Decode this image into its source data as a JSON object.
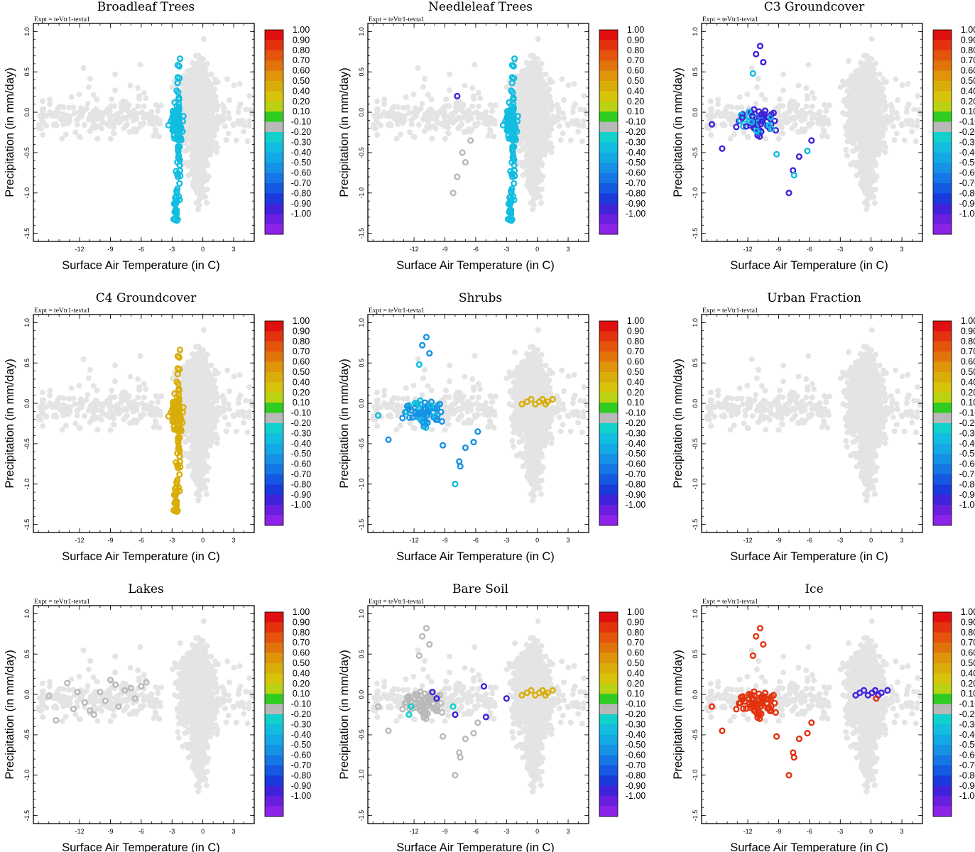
{
  "figure": {
    "experiment_label": "Expt = teVtr1-tevta1",
    "xlabel": "Surface Air Temperature (in C)",
    "ylabel": "Precipitation (in mm/day)"
  },
  "chart_data": [
    {
      "type": "scatter",
      "title": "Broadleaf Trees",
      "expt": "Expt = teVtr1-tevta1",
      "xlabel": "Surface Air Temperature (in C)",
      "ylabel": "Precipitation (in mm/day)",
      "xlim": [
        -16.5,
        5
      ],
      "ylim": [
        -1.6,
        1.1
      ],
      "xticks": [
        -12,
        -9,
        -6,
        -3,
        0,
        3
      ],
      "yticks": [
        -1.5,
        -1.0,
        -0.5,
        0.0,
        0.5,
        1.0
      ],
      "highlight": {
        "region": "narrow-band",
        "correlation": -0.3
      }
    },
    {
      "type": "scatter",
      "title": "Needleleaf Trees",
      "expt": "Expt = teVtr1-tevta1",
      "xlabel": "Surface Air Temperature (in C)",
      "ylabel": "Precipitation (in mm/day)",
      "xlim": [
        -16.5,
        5
      ],
      "ylim": [
        -1.6,
        1.1
      ],
      "xticks": [
        -12,
        -9,
        -6,
        -3,
        0,
        3
      ],
      "yticks": [
        -1.5,
        -1.0,
        -0.5,
        0.0,
        0.5,
        1.0
      ],
      "highlight": {
        "region": "narrow-band",
        "correlation": -0.3,
        "extras": [
          [
            -7.8,
            0.2,
            -0.9
          ],
          [
            -6.5,
            -0.35,
            -0.1
          ],
          [
            -7.3,
            -0.5,
            -0.1
          ],
          [
            -7.0,
            -0.62,
            -0.1
          ],
          [
            -7.8,
            -0.8,
            -0.1
          ],
          [
            -8.2,
            -1.0,
            -0.1
          ]
        ]
      }
    },
    {
      "type": "scatter",
      "title": "C3 Groundcover",
      "expt": "Expt = teVtr1-tevta1",
      "xlabel": "Surface Air Temperature (in C)",
      "ylabel": "Precipitation (in mm/day)",
      "xlim": [
        -16.5,
        5
      ],
      "ylim": [
        -1.6,
        1.1
      ],
      "xticks": [
        -12,
        -9,
        -6,
        -3,
        0,
        3
      ],
      "yticks": [
        -1.5,
        -1.0,
        -0.5,
        0.0,
        0.5,
        1.0
      ],
      "highlight": {
        "region": "cold-cluster",
        "correlation": -0.9,
        "alt_correlation": -0.3,
        "alt_every": 3
      }
    },
    {
      "type": "scatter",
      "title": "C4 Groundcover",
      "expt": "Expt = teVtr1-tevta1",
      "xlabel": "Surface Air Temperature (in C)",
      "ylabel": "Precipitation (in mm/day)",
      "xlim": [
        -16.5,
        5
      ],
      "ylim": [
        -1.6,
        1.1
      ],
      "xticks": [
        -12,
        -9,
        -6,
        -3,
        0,
        3
      ],
      "yticks": [
        -1.5,
        -1.0,
        -0.5,
        0.0,
        0.5,
        1.0
      ],
      "highlight": {
        "region": "narrow-band",
        "correlation": 0.5
      }
    },
    {
      "type": "scatter",
      "title": "Shrubs",
      "expt": "Expt = teVtr1-tevta1",
      "xlabel": "Surface Air Temperature (in C)",
      "ylabel": "Precipitation (in mm/day)",
      "xlim": [
        -16.5,
        5
      ],
      "ylim": [
        -1.6,
        1.1
      ],
      "xticks": [
        -12,
        -9,
        -6,
        -3,
        0,
        3
      ],
      "yticks": [
        -1.5,
        -1.0,
        -0.5,
        0.0,
        0.5,
        1.0
      ],
      "highlight": {
        "region": "cold-cluster",
        "correlation": -0.5,
        "alt_correlation": -0.3,
        "alt_every": 4,
        "warm_row": {
          "x": [
            -1.5,
            -1.0,
            -0.6,
            -0.2,
            0.2,
            0.5,
            0.8,
            1.0,
            1.5
          ],
          "y": 0.02,
          "correlation": 0.5
        }
      }
    },
    {
      "type": "scatter",
      "title": "Urban Fraction",
      "expt": "Expt = teVtr1-tevta1",
      "xlabel": "Surface Air Temperature (in C)",
      "ylabel": "Precipitation (in mm/day)",
      "xlim": [
        -16.5,
        5
      ],
      "ylim": [
        -1.6,
        1.1
      ],
      "xticks": [
        -12,
        -9,
        -6,
        -3,
        0,
        3
      ],
      "yticks": [
        -1.5,
        -1.0,
        -0.5,
        0.0,
        0.5,
        1.0
      ],
      "highlight": {
        "region": "none"
      }
    },
    {
      "type": "scatter",
      "title": "Lakes",
      "expt": "Expt = teVtr1-tevta1",
      "xlabel": "Surface Air Temperature (in C)",
      "ylabel": "Precipitation (in mm/day)",
      "xlim": [
        -16.5,
        5
      ],
      "ylim": [
        -1.6,
        1.1
      ],
      "xticks": [
        -12,
        -9,
        -6,
        -3,
        0,
        3
      ],
      "yticks": [
        -1.5,
        -1.0,
        -0.5,
        0.0,
        0.5,
        1.0
      ],
      "highlight": {
        "region": "lakes",
        "correlation": -0.1
      }
    },
    {
      "type": "scatter",
      "title": "Bare Soil",
      "expt": "Expt = teVtr1-tevta1",
      "xlabel": "Surface Air Temperature (in C)",
      "ylabel": "Precipitation (in mm/day)",
      "xlim": [
        -16.5,
        5
      ],
      "ylim": [
        -1.6,
        1.1
      ],
      "xticks": [
        -12,
        -9,
        -6,
        -3,
        0,
        3
      ],
      "yticks": [
        -1.5,
        -1.0,
        -0.5,
        0.0,
        0.5,
        1.0
      ],
      "highlight": {
        "region": "cold-cluster",
        "correlation": -0.1,
        "warm_row": {
          "x": [
            -1.5,
            -1.0,
            -0.6,
            -0.2,
            0.2,
            0.5,
            0.8,
            1.0,
            1.5
          ],
          "y": 0.02,
          "correlation": 0.5
        },
        "extras": [
          [
            -10.2,
            0.03,
            -0.9
          ],
          [
            -9.8,
            -0.05,
            -0.9
          ],
          [
            -12.3,
            -0.15,
            -0.2
          ],
          [
            -12.5,
            -0.25,
            -0.2
          ],
          [
            -8.2,
            -0.15,
            -0.2
          ],
          [
            -5.0,
            -0.28,
            -0.9
          ],
          [
            -5.2,
            0.1,
            -0.9
          ],
          [
            -3.0,
            -0.05,
            -0.9
          ],
          [
            -8.0,
            -0.25,
            -0.9
          ]
        ]
      }
    },
    {
      "type": "scatter",
      "title": "Ice",
      "expt": "Expt = teVtr1-tevta1",
      "xlabel": "Surface Air Temperature (in C)",
      "ylabel": "Precipitation (in mm/day)",
      "xlim": [
        -16.5,
        5
      ],
      "ylim": [
        -1.6,
        1.1
      ],
      "xticks": [
        -12,
        -9,
        -6,
        -3,
        0,
        3
      ],
      "yticks": [
        -1.5,
        -1.0,
        -0.5,
        0.0,
        0.5,
        1.0
      ],
      "highlight": {
        "region": "cold-cluster",
        "correlation": 0.9,
        "warm_row": {
          "x": [
            -1.5,
            -1.1,
            -0.7,
            -0.3,
            0.1,
            0.4,
            0.7,
            1.0,
            1.6
          ],
          "y": 0.02,
          "correlation": -0.9
        },
        "extras": [
          [
            0.5,
            -0.05,
            0.9
          ]
        ]
      }
    }
  ],
  "colorbar": {
    "levels": [
      "1.00",
      "0.90",
      "0.80",
      "0.70",
      "0.60",
      "0.50",
      "0.40",
      "0.20",
      "0.10",
      "-0.10",
      "-0.20",
      "-0.30",
      "-0.40",
      "-0.50",
      "-0.60",
      "-0.70",
      "-0.80",
      "-0.90",
      "-1.00"
    ],
    "colors": [
      "#e11010",
      "#e3330e",
      "#e4540d",
      "#e0740b",
      "#df940a",
      "#d9ad09",
      "#d7c30a",
      "#b9d214",
      "#2fcc22",
      "#b9b9b9",
      "#12d0cc",
      "#12bde0",
      "#12a9e4",
      "#1592e6",
      "#1577e6",
      "#1559e2",
      "#1a3adb",
      "#3f22da",
      "#6a1fde",
      "#8d22e8"
    ]
  },
  "background_color": "#e4e4e4"
}
